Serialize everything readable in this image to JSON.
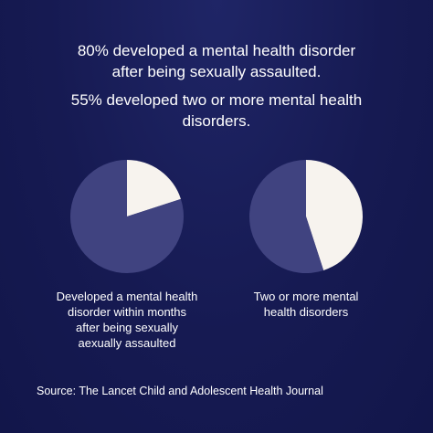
{
  "headline": {
    "line1": [
      "80% developed a mental health disorder",
      "after being sexually assaulted."
    ],
    "line2": [
      "55% developed two or more mental health",
      "disorders."
    ]
  },
  "chart_data": [
    {
      "type": "pie",
      "title": "",
      "slices": [
        {
          "label": "",
          "value": 80,
          "color": "#404380"
        },
        {
          "label": "",
          "value": 20,
          "color": "#f7f3ee"
        }
      ],
      "caption": [
        "Developed a mental health",
        "disorder within months",
        "after being sexually",
        "aexually assaulted"
      ]
    },
    {
      "type": "pie",
      "title": "",
      "slices": [
        {
          "label": "",
          "value": 55,
          "color": "#404380"
        },
        {
          "label": "",
          "value": 45,
          "color": "#f7f3ee"
        }
      ],
      "caption": [
        "Two or more mental",
        "health disorders"
      ]
    }
  ],
  "source": "Source: The Lancet Child and Adolescent Health Journal",
  "colors": {
    "background": "#161a52",
    "pie_primary": "#404380",
    "pie_secondary": "#f7f3ee",
    "text": "#ffffff"
  }
}
